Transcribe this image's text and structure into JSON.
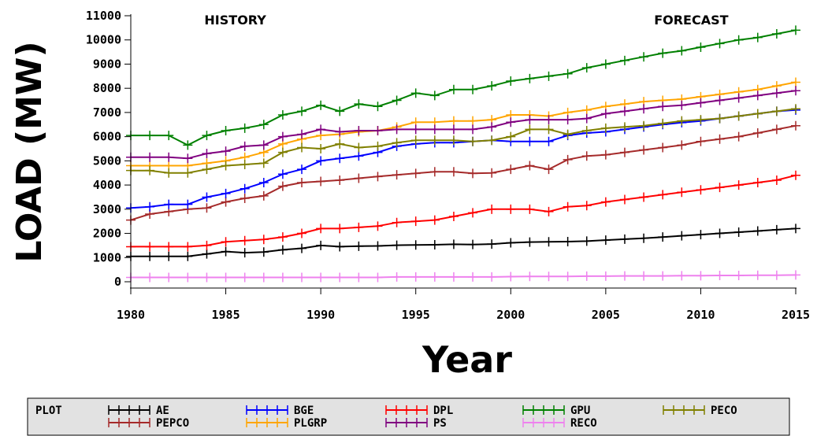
{
  "chart_data": {
    "type": "line",
    "xlabel": "Year",
    "ylabel": "LOAD (MW)",
    "xlim": [
      1980,
      2015
    ],
    "ylim": [
      0,
      11000
    ],
    "xticks": [
      1980,
      1985,
      1990,
      1995,
      2000,
      2005,
      2010,
      2015
    ],
    "yticks": [
      0,
      1000,
      2000,
      3000,
      4000,
      5000,
      6000,
      7000,
      8000,
      9000,
      10000,
      11000
    ],
    "annotations": [
      {
        "text": "HISTORY",
        "x": 1985.5,
        "y": 10900
      },
      {
        "text": "FORECAST",
        "x": 2009.5,
        "y": 10900
      }
    ],
    "legend": {
      "title": "PLOT",
      "position": "bottom"
    },
    "x": [
      1980,
      1981,
      1982,
      1983,
      1984,
      1985,
      1986,
      1987,
      1988,
      1989,
      1990,
      1991,
      1992,
      1993,
      1994,
      1995,
      1996,
      1997,
      1998,
      1999,
      2000,
      2001,
      2002,
      2003,
      2004,
      2005,
      2006,
      2007,
      2008,
      2009,
      2010,
      2011,
      2012,
      2013,
      2014,
      2015
    ],
    "series": [
      {
        "name": "AE",
        "color": "#000000",
        "values": [
          1050,
          1050,
          1050,
          1050,
          1150,
          1250,
          1200,
          1230,
          1320,
          1380,
          1500,
          1450,
          1470,
          1480,
          1510,
          1520,
          1530,
          1550,
          1540,
          1560,
          1610,
          1640,
          1650,
          1660,
          1680,
          1720,
          1760,
          1800,
          1850,
          1900,
          1950,
          2000,
          2050,
          2100,
          2150,
          2200
        ]
      },
      {
        "name": "PEPCO",
        "color": "#a52a2a",
        "values": [
          2550,
          2800,
          2900,
          3000,
          3050,
          3300,
          3450,
          3550,
          3950,
          4100,
          4150,
          4200,
          4280,
          4350,
          4420,
          4480,
          4550,
          4550,
          4480,
          4500,
          4650,
          4800,
          4650,
          5050,
          5200,
          5250,
          5350,
          5450,
          5550,
          5650,
          5800,
          5900,
          6000,
          6150,
          6300,
          6450
        ]
      },
      {
        "name": "BGE",
        "color": "#0000ff",
        "values": [
          3050,
          3100,
          3200,
          3200,
          3500,
          3650,
          3850,
          4100,
          4450,
          4650,
          5000,
          5100,
          5200,
          5350,
          5600,
          5700,
          5750,
          5750,
          5800,
          5850,
          5800,
          5800,
          5800,
          6050,
          6150,
          6200,
          6300,
          6400,
          6500,
          6580,
          6650,
          6750,
          6850,
          6950,
          7050,
          7100
        ]
      },
      {
        "name": "PLGRP",
        "color": "#ffa500",
        "values": [
          4800,
          4800,
          4800,
          4800,
          4900,
          5000,
          5150,
          5350,
          5700,
          5900,
          6050,
          6100,
          6200,
          6250,
          6400,
          6600,
          6600,
          6650,
          6650,
          6700,
          6900,
          6900,
          6850,
          7000,
          7100,
          7250,
          7350,
          7450,
          7500,
          7550,
          7650,
          7750,
          7850,
          7950,
          8100,
          8250
        ]
      },
      {
        "name": "DPL",
        "color": "#ff0000",
        "values": [
          1450,
          1450,
          1450,
          1450,
          1500,
          1650,
          1700,
          1750,
          1850,
          2000,
          2200,
          2200,
          2250,
          2300,
          2450,
          2500,
          2550,
          2700,
          2850,
          3000,
          3000,
          3000,
          2900,
          3100,
          3150,
          3300,
          3400,
          3500,
          3600,
          3700,
          3800,
          3900,
          4000,
          4100,
          4200,
          4400
        ]
      },
      {
        "name": "PS",
        "color": "#800080",
        "values": [
          5150,
          5150,
          5150,
          5100,
          5300,
          5400,
          5600,
          5650,
          6000,
          6100,
          6300,
          6200,
          6250,
          6250,
          6300,
          6300,
          6300,
          6300,
          6300,
          6400,
          6600,
          6700,
          6700,
          6700,
          6750,
          6950,
          7050,
          7150,
          7250,
          7300,
          7400,
          7500,
          7600,
          7700,
          7800,
          7900
        ]
      },
      {
        "name": "GPU",
        "color": "#008000",
        "values": [
          6050,
          6050,
          6050,
          5650,
          6050,
          6250,
          6350,
          6500,
          6900,
          7050,
          7300,
          7050,
          7350,
          7250,
          7500,
          7800,
          7700,
          7950,
          7950,
          8100,
          8300,
          8400,
          8500,
          8600,
          8850,
          9000,
          9150,
          9300,
          9450,
          9550,
          9700,
          9850,
          10000,
          10100,
          10250,
          10400
        ]
      },
      {
        "name": "RECO",
        "color": "#ee82ee",
        "values": [
          180,
          180,
          180,
          180,
          180,
          180,
          180,
          180,
          180,
          180,
          180,
          180,
          180,
          180,
          200,
          200,
          200,
          200,
          200,
          200,
          210,
          220,
          220,
          220,
          230,
          230,
          240,
          240,
          240,
          250,
          250,
          260,
          260,
          270,
          270,
          280
        ]
      },
      {
        "name": "PECO",
        "color": "#808000",
        "values": [
          4600,
          4600,
          4500,
          4500,
          4650,
          4800,
          4850,
          4900,
          5350,
          5550,
          5500,
          5700,
          5550,
          5600,
          5750,
          5850,
          5850,
          5850,
          5800,
          5850,
          6000,
          6300,
          6300,
          6100,
          6250,
          6350,
          6400,
          6450,
          6550,
          6650,
          6700,
          6750,
          6850,
          6950,
          7050,
          7150
        ]
      }
    ]
  }
}
